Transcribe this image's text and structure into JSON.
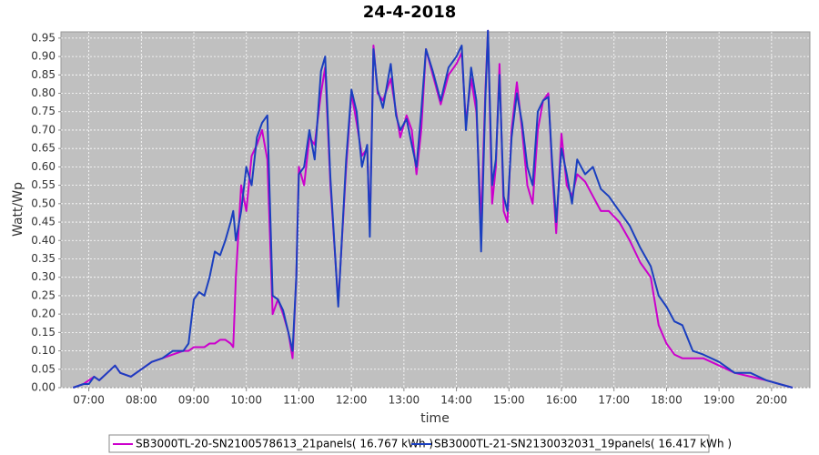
{
  "chart_data": {
    "type": "line",
    "title": "24-4-2018",
    "x_label": "time",
    "y_label": "Watt/Wp",
    "x": [
      6.7,
      6.9,
      7.0,
      7.1,
      7.2,
      7.35,
      7.5,
      7.6,
      7.8,
      8.0,
      8.2,
      8.4,
      8.6,
      8.8,
      8.9,
      9.0,
      9.1,
      9.2,
      9.3,
      9.4,
      9.5,
      9.6,
      9.7,
      9.75,
      9.8,
      9.9,
      10.0,
      10.1,
      10.2,
      10.3,
      10.4,
      10.5,
      10.6,
      10.7,
      10.8,
      10.88,
      10.95,
      11.0,
      11.1,
      11.2,
      11.3,
      11.42,
      11.5,
      11.6,
      11.75,
      11.9,
      12.0,
      12.1,
      12.2,
      12.3,
      12.35,
      12.42,
      12.5,
      12.6,
      12.75,
      12.85,
      12.93,
      13.05,
      13.15,
      13.24,
      13.33,
      13.42,
      13.55,
      13.7,
      13.85,
      14.0,
      14.1,
      14.18,
      14.28,
      14.38,
      14.47,
      14.55,
      14.6,
      14.68,
      14.75,
      14.82,
      14.9,
      14.97,
      15.05,
      15.15,
      15.25,
      15.35,
      15.45,
      15.55,
      15.65,
      15.75,
      15.82,
      15.9,
      16.0,
      16.1,
      16.2,
      16.3,
      16.45,
      16.6,
      16.75,
      16.9,
      17.1,
      17.3,
      17.5,
      17.7,
      17.85,
      18.0,
      18.15,
      18.3,
      18.5,
      18.7,
      19.0,
      19.3,
      19.6,
      19.9,
      20.15,
      20.4
    ],
    "series": [
      {
        "name": "SB3000TL-20-SN2100578613_21panels( 16.767 kWh )",
        "color": "#cc00cc",
        "values": [
          0.0,
          0.01,
          0.02,
          0.03,
          0.02,
          0.04,
          0.06,
          0.04,
          0.03,
          0.05,
          0.07,
          0.08,
          0.09,
          0.1,
          0.1,
          0.11,
          0.11,
          0.11,
          0.12,
          0.12,
          0.13,
          0.13,
          0.12,
          0.11,
          0.3,
          0.55,
          0.48,
          0.63,
          0.66,
          0.7,
          0.62,
          0.2,
          0.24,
          0.2,
          0.15,
          0.08,
          0.3,
          0.6,
          0.55,
          0.68,
          0.66,
          0.8,
          0.87,
          0.55,
          0.23,
          0.6,
          0.8,
          0.72,
          0.63,
          0.65,
          0.43,
          0.93,
          0.8,
          0.78,
          0.84,
          0.75,
          0.68,
          0.74,
          0.7,
          0.58,
          0.7,
          0.92,
          0.85,
          0.77,
          0.85,
          0.88,
          0.91,
          0.72,
          0.84,
          0.75,
          0.45,
          0.8,
          0.97,
          0.5,
          0.6,
          0.88,
          0.48,
          0.45,
          0.7,
          0.83,
          0.7,
          0.55,
          0.5,
          0.7,
          0.78,
          0.8,
          0.6,
          0.42,
          0.69,
          0.55,
          0.52,
          0.58,
          0.56,
          0.52,
          0.48,
          0.48,
          0.45,
          0.4,
          0.34,
          0.3,
          0.17,
          0.12,
          0.09,
          0.08,
          0.08,
          0.08,
          0.06,
          0.04,
          0.03,
          0.02,
          0.01,
          0.0
        ]
      },
      {
        "name": "SB3000TL-21-SN2130032031_19panels( 16.417 kWh )",
        "color": "#1a3fbf",
        "values": [
          0.0,
          0.01,
          0.01,
          0.03,
          0.02,
          0.04,
          0.06,
          0.04,
          0.03,
          0.05,
          0.07,
          0.08,
          0.1,
          0.1,
          0.12,
          0.24,
          0.26,
          0.25,
          0.3,
          0.37,
          0.36,
          0.4,
          0.45,
          0.48,
          0.4,
          0.48,
          0.6,
          0.55,
          0.68,
          0.72,
          0.74,
          0.25,
          0.24,
          0.21,
          0.15,
          0.1,
          0.3,
          0.58,
          0.6,
          0.7,
          0.62,
          0.86,
          0.9,
          0.57,
          0.22,
          0.62,
          0.81,
          0.75,
          0.6,
          0.66,
          0.41,
          0.92,
          0.81,
          0.76,
          0.88,
          0.74,
          0.7,
          0.73,
          0.66,
          0.6,
          0.75,
          0.92,
          0.86,
          0.78,
          0.87,
          0.9,
          0.93,
          0.7,
          0.87,
          0.78,
          0.37,
          0.78,
          0.97,
          0.55,
          0.62,
          0.85,
          0.52,
          0.48,
          0.68,
          0.8,
          0.72,
          0.6,
          0.55,
          0.75,
          0.78,
          0.79,
          0.62,
          0.45,
          0.65,
          0.58,
          0.5,
          0.62,
          0.58,
          0.6,
          0.54,
          0.52,
          0.48,
          0.44,
          0.38,
          0.33,
          0.25,
          0.22,
          0.18,
          0.17,
          0.1,
          0.09,
          0.07,
          0.04,
          0.04,
          0.02,
          0.01,
          0.0
        ]
      }
    ],
    "xlim": [
      6.47,
      20.73
    ],
    "xticks": [
      {
        "value": 7,
        "label": "07:00"
      },
      {
        "value": 8,
        "label": "08:00"
      },
      {
        "value": 9,
        "label": "09:00"
      },
      {
        "value": 10,
        "label": "10:00"
      },
      {
        "value": 11,
        "label": "11:00"
      },
      {
        "value": 12,
        "label": "12:00"
      },
      {
        "value": 13,
        "label": "13:00"
      },
      {
        "value": 14,
        "label": "14:00"
      },
      {
        "value": 15,
        "label": "15:00"
      },
      {
        "value": 16,
        "label": "16:00"
      },
      {
        "value": 17,
        "label": "17:00"
      },
      {
        "value": 18,
        "label": "18:00"
      },
      {
        "value": 19,
        "label": "19:00"
      },
      {
        "value": 20,
        "label": "20:00"
      }
    ],
    "ylim": [
      0,
      0.967
    ],
    "yticks": [
      {
        "value": 0,
        "label": "0.00"
      },
      {
        "value": 0.05,
        "label": "0.05"
      },
      {
        "value": 0.1,
        "label": "0.10"
      },
      {
        "value": 0.15,
        "label": "0.15"
      },
      {
        "value": 0.2,
        "label": "0.20"
      },
      {
        "value": 0.25,
        "label": "0.25"
      },
      {
        "value": 0.3,
        "label": "0.30"
      },
      {
        "value": 0.35,
        "label": "0.35"
      },
      {
        "value": 0.4,
        "label": "0.40"
      },
      {
        "value": 0.45,
        "label": "0.45"
      },
      {
        "value": 0.5,
        "label": "0.50"
      },
      {
        "value": 0.55,
        "label": "0.55"
      },
      {
        "value": 0.6,
        "label": "0.60"
      },
      {
        "value": 0.65,
        "label": "0.65"
      },
      {
        "value": 0.7,
        "label": "0.70"
      },
      {
        "value": 0.75,
        "label": "0.75"
      },
      {
        "value": 0.8,
        "label": "0.80"
      },
      {
        "value": 0.85,
        "label": "0.85"
      },
      {
        "value": 0.9,
        "label": "0.90"
      },
      {
        "value": 0.95,
        "label": "0.95"
      }
    ],
    "grid": true,
    "legend": "bottom"
  }
}
